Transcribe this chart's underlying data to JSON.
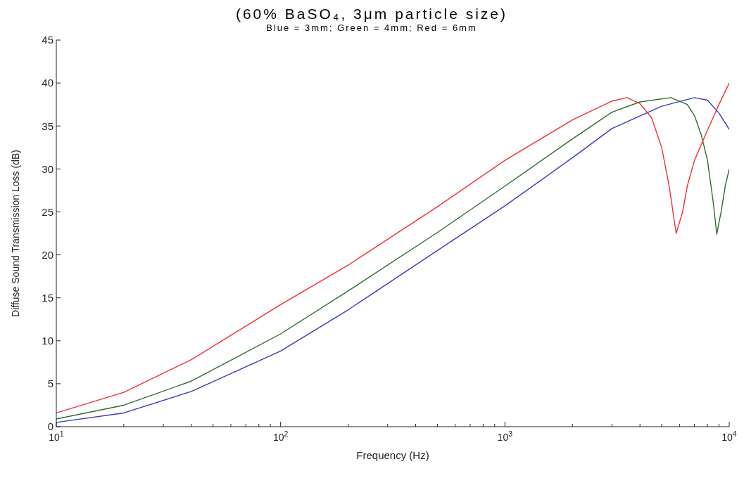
{
  "chart_data": {
    "type": "line",
    "title": "(60% BaSO₄, 3μm particle size)",
    "subtitle": "Blue = 3mm; Green = 4mm; Red = 6mm",
    "xlabel": "Frequency (Hz)",
    "ylabel": "Diffuse Sound Transmission Loss (dB)",
    "log": "x",
    "xlim": [
      10,
      10000
    ],
    "ylim": [
      0,
      45
    ],
    "xticks": [
      {
        "value": 10,
        "label": "10$^{1}$"
      },
      {
        "value": 20,
        "label": null
      },
      {
        "value": 30,
        "label": null
      },
      {
        "value": 40,
        "label": null
      },
      {
        "value": 50,
        "label": null
      },
      {
        "value": 60,
        "label": null
      },
      {
        "value": 70,
        "label": null
      },
      {
        "value": 80,
        "label": null
      },
      {
        "value": 90,
        "label": null
      },
      {
        "value": 100,
        "label": "10$^{2}$"
      },
      {
        "value": 200,
        "label": null
      },
      {
        "value": 300,
        "label": null
      },
      {
        "value": 400,
        "label": null
      },
      {
        "value": 500,
        "label": null
      },
      {
        "value": 600,
        "label": null
      },
      {
        "value": 700,
        "label": null
      },
      {
        "value": 800,
        "label": null
      },
      {
        "value": 900,
        "label": null
      },
      {
        "value": 1000,
        "label": "10$^{3}$"
      },
      {
        "value": 2000,
        "label": null
      },
      {
        "value": 3000,
        "label": null
      },
      {
        "value": 4000,
        "label": null
      },
      {
        "value": 5000,
        "label": null
      },
      {
        "value": 6000,
        "label": null
      },
      {
        "value": 7000,
        "label": null
      },
      {
        "value": 8000,
        "label": null
      },
      {
        "value": 9000,
        "label": null
      },
      {
        "value": 10000,
        "label": "10$^{4}$"
      }
    ],
    "yticks": [
      0,
      5,
      10,
      15,
      20,
      25,
      30,
      35,
      40,
      45
    ],
    "marker": "none",
    "line_style": "solid",
    "series": [
      {
        "color": "#3a3ab8",
        "x": [
          10,
          20,
          40,
          100,
          200,
          500,
          1000,
          2000,
          3000,
          5000,
          7000,
          8000,
          9000,
          10000
        ],
        "values": [
          0.5,
          1.6,
          4.1,
          8.8,
          13.6,
          20.5,
          25.7,
          31.3,
          34.7,
          37.3,
          38.3,
          38,
          36.5,
          34.6
        ]
      },
      {
        "color": "#2e6b2e",
        "x": [
          10,
          20,
          40,
          100,
          200,
          500,
          1000,
          2000,
          3000,
          4000,
          5500,
          6500,
          7000,
          7500,
          8000,
          8500,
          8800,
          9200,
          9600,
          10000
        ],
        "values": [
          0.9,
          2.5,
          5.3,
          10.8,
          15.8,
          22.6,
          28,
          33.5,
          36.6,
          37.8,
          38.3,
          37.5,
          36.2,
          34,
          31,
          26,
          22.4,
          25,
          28,
          30
        ]
      },
      {
        "color": "#f03030",
        "x": [
          10,
          20,
          40,
          100,
          200,
          500,
          1000,
          2000,
          3000,
          3500,
          4000,
          4500,
          5000,
          5400,
          5800,
          6200,
          6500,
          7000,
          8000,
          9000,
          10000
        ],
        "values": [
          1.6,
          4,
          7.8,
          14.2,
          18.8,
          25.6,
          31,
          35.7,
          37.9,
          38.3,
          37.6,
          36,
          32.5,
          28,
          22.5,
          25,
          28,
          31,
          34.5,
          37.5,
          40
        ]
      }
    ]
  }
}
